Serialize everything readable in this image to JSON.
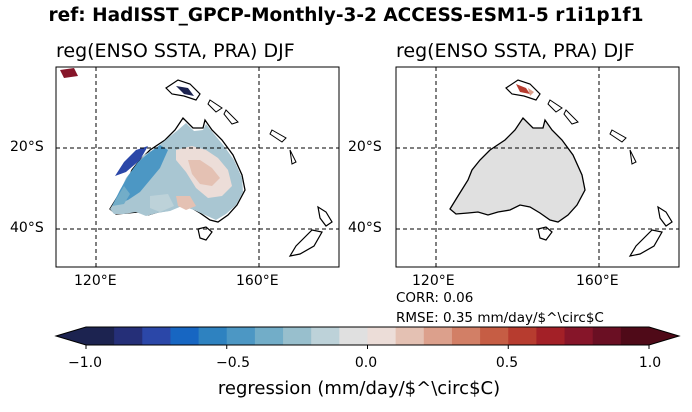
{
  "figure_title": "ref: HadISST_GPCP-Monthly-3-2 ACCESS-ESM1-5 r1i1p1f1",
  "panels": [
    {
      "title": "reg(ENSO SSTA, PRA) DJF",
      "x_ticks": [
        "120°E",
        "160°E"
      ],
      "y_ticks": [
        "20°S",
        "40°S"
      ],
      "lon_range": [
        110,
        180
      ],
      "lat_range": [
        -50,
        -0.5
      ]
    },
    {
      "title": "reg(ENSO SSTA, PRA) DJF",
      "x_ticks": [
        "120°E",
        "160°E"
      ],
      "y_ticks": [
        "20°S",
        "40°S"
      ],
      "lon_range": [
        110,
        180
      ],
      "lat_range": [
        -50,
        -0.5
      ],
      "stats": {
        "corr": "CORR: 0.06",
        "rmse": "RMSE: 0.35 mm/day/$^\\circ$C"
      }
    }
  ],
  "colorbar": {
    "label": "regression (mm/day/$^\\circ$C)",
    "ticks": [
      "−1.0",
      "−0.5",
      "0.0",
      "0.5",
      "1.0"
    ],
    "tick_values": [
      -1.0,
      -0.5,
      0.0,
      0.5,
      1.0
    ],
    "range": [
      -1.0,
      1.0
    ],
    "colors": [
      "#1c2350",
      "#252f78",
      "#2b47a8",
      "#1766c2",
      "#2e82c0",
      "#4c97c4",
      "#72adc8",
      "#98bfcd",
      "#bdd2d9",
      "#e0e0e0",
      "#ecddd8",
      "#e4c1b3",
      "#dca08c",
      "#d27f66",
      "#c65d44",
      "#b73c2f",
      "#a32027",
      "#861529",
      "#6a0f23",
      "#4f0a18"
    ],
    "extend": "both",
    "orientation": "horizontal"
  }
}
